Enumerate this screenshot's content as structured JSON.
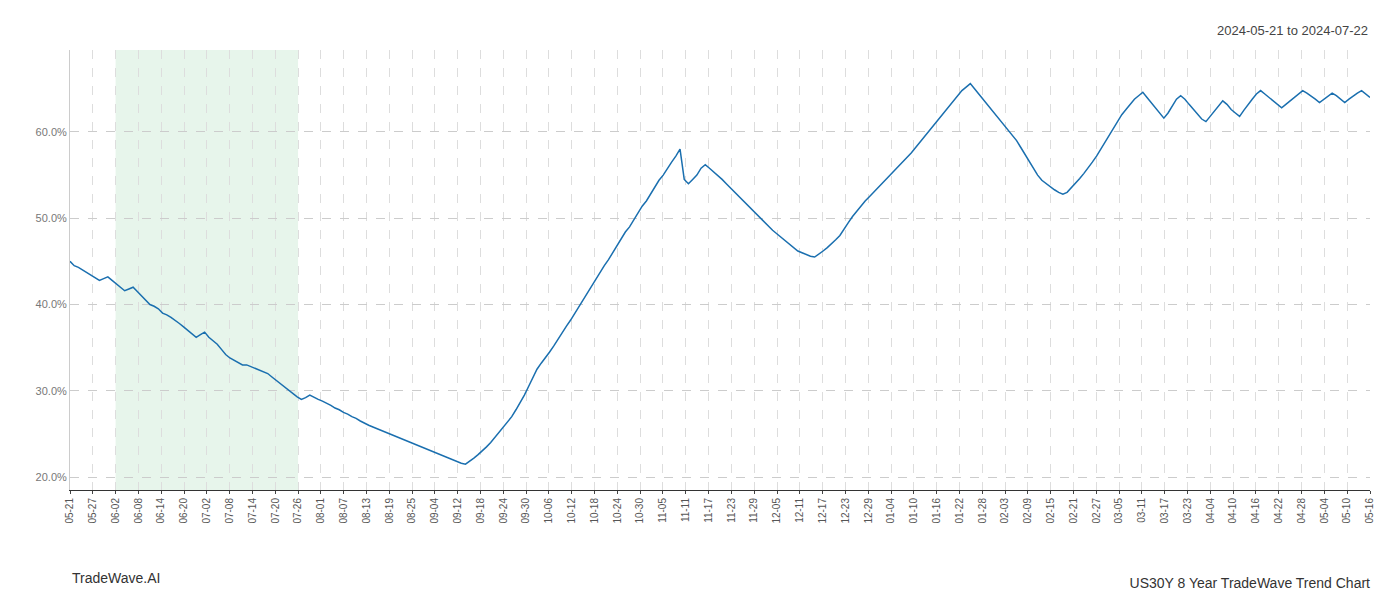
{
  "chart_data": {
    "type": "line",
    "title": "US30Y 8 Year TradeWave Trend Chart",
    "subtitle": "2024-05-21 to 2024-07-22",
    "annotations": [
      "TradeWave.AI"
    ],
    "color": "#1a6faf",
    "grid": true,
    "xlim": [
      0,
      57
    ],
    "xticks": [
      {
        "value": 0,
        "label": "05-21"
      },
      {
        "value": 1,
        "label": "05-27"
      },
      {
        "value": 2,
        "label": "06-02"
      },
      {
        "value": 3,
        "label": "06-08"
      },
      {
        "value": 4,
        "label": "06-14"
      },
      {
        "value": 5,
        "label": "06-20"
      },
      {
        "value": 6,
        "label": "07-02"
      },
      {
        "value": 7,
        "label": "07-08"
      },
      {
        "value": 8,
        "label": "07-14"
      },
      {
        "value": 9,
        "label": "07-20"
      },
      {
        "value": 10,
        "label": "07-26"
      },
      {
        "value": 11,
        "label": "08-01"
      },
      {
        "value": 12,
        "label": "08-07"
      },
      {
        "value": 13,
        "label": "08-13"
      },
      {
        "value": 14,
        "label": "08-19"
      },
      {
        "value": 15,
        "label": "08-25"
      },
      {
        "value": 16,
        "label": "09-04"
      },
      {
        "value": 17,
        "label": "09-12"
      },
      {
        "value": 18,
        "label": "09-18"
      },
      {
        "value": 19,
        "label": "09-24"
      },
      {
        "value": 20,
        "label": "09-30"
      },
      {
        "value": 21,
        "label": "10-06"
      },
      {
        "value": 22,
        "label": "10-12"
      },
      {
        "value": 23,
        "label": "10-18"
      },
      {
        "value": 24,
        "label": "10-24"
      },
      {
        "value": 25,
        "label": "10-30"
      },
      {
        "value": 26,
        "label": "11-05"
      },
      {
        "value": 27,
        "label": "11-11"
      },
      {
        "value": 28,
        "label": "11-17"
      },
      {
        "value": 29,
        "label": "11-23"
      },
      {
        "value": 30,
        "label": "11-29"
      },
      {
        "value": 31,
        "label": "12-05"
      },
      {
        "value": 32,
        "label": "12-11"
      },
      {
        "value": 33,
        "label": "12-17"
      },
      {
        "value": 34,
        "label": "12-23"
      },
      {
        "value": 35,
        "label": "12-29"
      },
      {
        "value": 36,
        "label": "01-04"
      },
      {
        "value": 37,
        "label": "01-10"
      },
      {
        "value": 38,
        "label": "01-16"
      },
      {
        "value": 39,
        "label": "01-22"
      },
      {
        "value": 40,
        "label": "01-28"
      },
      {
        "value": 41,
        "label": "02-03"
      },
      {
        "value": 42,
        "label": "02-09"
      },
      {
        "value": 43,
        "label": "02-15"
      },
      {
        "value": 44,
        "label": "02-21"
      },
      {
        "value": 45,
        "label": "02-27"
      },
      {
        "value": 46,
        "label": "03-05"
      },
      {
        "value": 47,
        "label": "03-11"
      },
      {
        "value": 48,
        "label": "03-17"
      },
      {
        "value": 49,
        "label": "03-23"
      },
      {
        "value": 50,
        "label": "04-04"
      },
      {
        "value": 51,
        "label": "04-10"
      },
      {
        "value": 52,
        "label": "04-16"
      },
      {
        "value": 53,
        "label": "04-22"
      },
      {
        "value": 54,
        "label": "04-28"
      },
      {
        "value": 55,
        "label": "05-04"
      },
      {
        "value": 56,
        "label": "05-10"
      },
      {
        "value": 57,
        "label": "05-16"
      }
    ],
    "ylim": [
      0.185,
      0.695
    ],
    "yticks": [
      {
        "value": 0.2,
        "label": "20.0%"
      },
      {
        "value": 0.3,
        "label": "30.0%"
      },
      {
        "value": 0.4,
        "label": "40.0%"
      },
      {
        "value": 0.5,
        "label": "50.0%"
      },
      {
        "value": 0.6,
        "label": "60.0%"
      }
    ],
    "shaded_region": {
      "x": [
        2,
        10
      ],
      "color": "#d4edda"
    },
    "values": [
      0.45,
      0.445,
      0.443,
      0.44,
      0.438,
      0.435,
      0.432,
      0.428,
      0.43,
      0.432,
      0.428,
      0.424,
      0.42,
      0.416,
      0.418,
      0.42,
      0.415,
      0.41,
      0.405,
      0.4,
      0.398,
      0.395,
      0.39,
      0.388,
      0.385,
      0.382,
      0.378,
      0.374,
      0.37,
      0.366,
      0.362,
      0.365,
      0.368,
      0.362,
      0.358,
      0.354,
      0.348,
      0.342,
      0.338,
      0.335,
      0.332,
      0.33,
      0.33,
      0.328,
      0.326,
      0.324,
      0.322,
      0.32,
      0.316,
      0.312,
      0.308,
      0.304,
      0.3,
      0.296,
      0.293,
      0.29,
      0.292,
      0.295,
      0.292,
      0.29,
      0.288,
      0.285,
      0.283,
      0.28,
      0.278,
      0.275,
      0.273,
      0.27,
      0.268,
      0.265,
      0.262,
      0.26,
      0.258,
      0.256,
      0.254,
      0.252,
      0.25,
      0.248,
      0.246,
      0.244,
      0.242,
      0.24,
      0.238,
      0.236,
      0.234,
      0.232,
      0.23,
      0.228,
      0.226,
      0.224,
      0.222,
      0.22,
      0.218,
      0.216,
      0.215,
      0.218,
      0.222,
      0.226,
      0.23,
      0.235,
      0.24,
      0.246,
      0.252,
      0.258,
      0.264,
      0.27,
      0.278,
      0.286,
      0.295,
      0.305,
      0.315,
      0.325,
      0.332,
      0.338,
      0.345,
      0.352,
      0.36,
      0.368,
      0.375,
      0.382,
      0.39,
      0.398,
      0.406,
      0.414,
      0.422,
      0.43,
      0.438,
      0.445,
      0.452,
      0.46,
      0.468,
      0.476,
      0.484,
      0.49,
      0.498,
      0.506,
      0.514,
      0.52,
      0.528,
      0.536,
      0.544,
      0.55,
      0.558,
      0.565,
      0.572,
      0.58,
      0.545,
      0.54,
      0.545,
      0.55,
      0.558,
      0.562,
      0.558,
      0.554,
      0.55,
      0.545,
      0.54,
      0.535,
      0.53,
      0.525,
      0.52,
      0.515,
      0.51,
      0.505,
      0.5,
      0.495,
      0.49,
      0.486,
      0.482,
      0.478,
      0.474,
      0.47,
      0.466,
      0.462,
      0.46,
      0.458,
      0.456,
      0.455,
      0.458,
      0.462,
      0.466,
      0.47,
      0.475,
      0.48,
      0.488,
      0.495,
      0.502,
      0.508,
      0.515,
      0.52,
      0.525,
      0.53,
      0.535,
      0.54,
      0.545,
      0.55,
      0.555,
      0.56,
      0.565,
      0.57,
      0.576,
      0.582,
      0.588,
      0.594,
      0.6,
      0.606,
      0.612,
      0.618,
      0.624,
      0.63,
      0.636,
      0.642,
      0.648,
      0.652,
      0.656,
      0.65,
      0.644,
      0.638,
      0.632,
      0.626,
      0.62,
      0.614,
      0.608,
      0.602,
      0.596,
      0.59,
      0.582,
      0.574,
      0.566,
      0.558,
      0.55,
      0.544,
      0.54,
      0.536,
      0.533,
      0.53,
      0.528,
      0.53,
      0.535,
      0.54,
      0.546,
      0.552,
      0.558,
      0.565,
      0.572,
      0.58,
      0.588,
      0.596,
      0.604,
      0.612,
      0.62,
      0.626,
      0.632,
      0.638,
      0.642,
      0.646,
      0.64,
      0.634,
      0.628,
      0.622,
      0.616,
      0.622,
      0.63,
      0.638,
      0.642,
      0.638,
      0.632,
      0.626,
      0.62,
      0.615,
      0.612,
      0.618,
      0.624,
      0.63,
      0.636,
      0.632,
      0.626,
      0.622,
      0.618,
      0.625,
      0.632,
      0.638,
      0.644,
      0.648,
      0.644,
      0.64,
      0.636,
      0.632,
      0.628,
      0.632,
      0.636,
      0.64,
      0.644,
      0.648,
      0.645,
      0.642,
      0.638,
      0.634,
      0.638,
      0.642,
      0.645,
      0.642,
      0.638,
      0.634,
      0.638,
      0.642,
      0.645,
      0.648,
      0.644,
      0.64
    ]
  }
}
